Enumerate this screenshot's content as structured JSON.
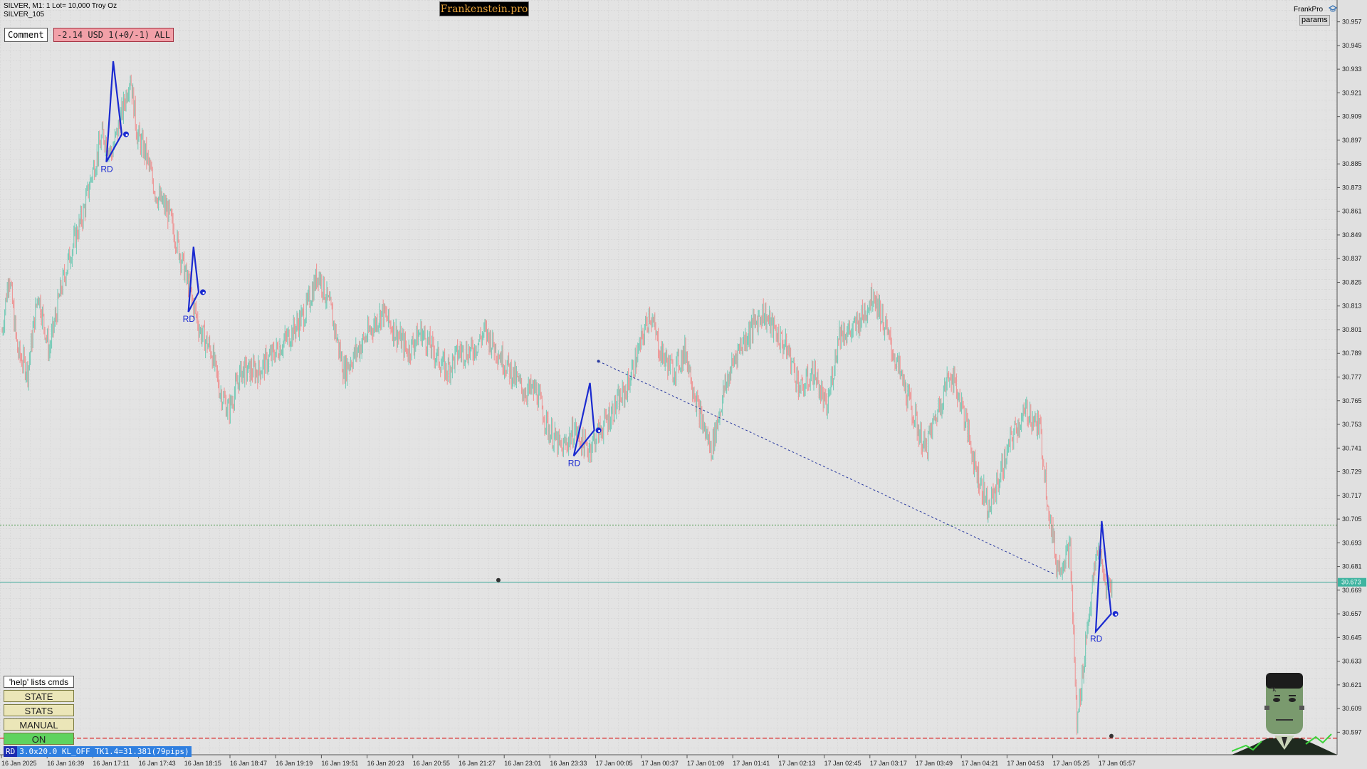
{
  "header": {
    "symbol_line": "SILVER, M1:  1 Lot= 10,000 Troy Oz",
    "indicator_line": "SILVER_105",
    "brand": "Frankenstein.pro",
    "comment_label": "Comment",
    "pnl_text": "-2.14 USD 1(+0/-1) ALL",
    "account_name": "FrankPro",
    "params_label": "params"
  },
  "left_panel": {
    "help_text": "'help' lists cmds",
    "buttons": [
      {
        "label": "STATE",
        "color": "#ebe6b8"
      },
      {
        "label": "STATS",
        "color": "#ebe6b8"
      },
      {
        "label": "MANUAL",
        "color": "#ebe6b8"
      },
      {
        "label": "ON",
        "color": "#5fd35f"
      }
    ],
    "status_tag": "RD",
    "status_text": "3.0x20.0 KL_OFF TK1.4=31.381(79pips)"
  },
  "price_axis": {
    "ticks": [
      "30.957",
      "30.945",
      "30.933",
      "30.921",
      "30.909",
      "30.897",
      "30.885",
      "30.873",
      "30.861",
      "30.849",
      "30.837",
      "30.825",
      "30.813",
      "30.801",
      "30.789",
      "30.777",
      "30.765",
      "30.753",
      "30.741",
      "30.729",
      "30.717",
      "30.705",
      "30.693",
      "30.681",
      "30.669",
      "30.657",
      "30.645",
      "30.633",
      "30.621",
      "30.609",
      "30.597"
    ],
    "current_price": "30.673"
  },
  "time_axis": {
    "ticks": [
      "16 Jan 2025",
      "16 Jan 16:39",
      "16 Jan 17:11",
      "16 Jan 17:43",
      "16 Jan 18:15",
      "16 Jan 18:47",
      "16 Jan 19:19",
      "16 Jan 19:51",
      "16 Jan 20:23",
      "16 Jan 20:55",
      "16 Jan 21:27",
      "16 Jan 23:01",
      "16 Jan 23:33",
      "17 Jan 00:05",
      "17 Jan 00:37",
      "17 Jan 01:09",
      "17 Jan 01:41",
      "17 Jan 02:13",
      "17 Jan 02:45",
      "17 Jan 03:17",
      "17 Jan 03:49",
      "17 Jan 04:21",
      "17 Jan 04:53",
      "17 Jan 05:25",
      "17 Jan 05:57"
    ]
  },
  "chart_data": {
    "type": "candlestick",
    "ylim": [
      30.591,
      30.963
    ],
    "bull_color": "#6ec9b4",
    "bear_color": "#ef8f8f",
    "close_anchors": [
      [
        0,
        30.8
      ],
      [
        8,
        30.83
      ],
      [
        18,
        30.79
      ],
      [
        30,
        30.78
      ],
      [
        42,
        30.82
      ],
      [
        55,
        30.79
      ],
      [
        68,
        30.82
      ],
      [
        80,
        30.84
      ],
      [
        95,
        30.86
      ],
      [
        105,
        30.88
      ],
      [
        118,
        30.9
      ],
      [
        128,
        30.89
      ],
      [
        140,
        30.91
      ],
      [
        150,
        30.93
      ],
      [
        158,
        30.9
      ],
      [
        168,
        30.89
      ],
      [
        180,
        30.87
      ],
      [
        195,
        30.86
      ],
      [
        208,
        30.84
      ],
      [
        220,
        30.82
      ],
      [
        232,
        30.8
      ],
      [
        245,
        30.79
      ],
      [
        255,
        30.77
      ],
      [
        265,
        30.76
      ],
      [
        280,
        30.78
      ],
      [
        300,
        30.78
      ],
      [
        320,
        30.79
      ],
      [
        340,
        30.8
      ],
      [
        355,
        30.81
      ],
      [
        370,
        30.83
      ],
      [
        385,
        30.81
      ],
      [
        400,
        30.78
      ],
      [
        415,
        30.79
      ],
      [
        430,
        30.8
      ],
      [
        445,
        30.81
      ],
      [
        460,
        30.8
      ],
      [
        475,
        30.79
      ],
      [
        490,
        30.8
      ],
      [
        505,
        30.79
      ],
      [
        520,
        30.78
      ],
      [
        535,
        30.79
      ],
      [
        550,
        30.79
      ],
      [
        565,
        30.8
      ],
      [
        580,
        30.79
      ],
      [
        595,
        30.78
      ],
      [
        610,
        30.77
      ],
      [
        625,
        30.77
      ],
      [
        640,
        30.75
      ],
      [
        655,
        30.74
      ],
      [
        670,
        30.75
      ],
      [
        685,
        30.74
      ],
      [
        700,
        30.75
      ],
      [
        715,
        30.76
      ],
      [
        730,
        30.77
      ],
      [
        745,
        30.79
      ],
      [
        758,
        30.81
      ],
      [
        770,
        30.79
      ],
      [
        785,
        30.78
      ],
      [
        800,
        30.79
      ],
      [
        815,
        30.76
      ],
      [
        830,
        30.74
      ],
      [
        845,
        30.77
      ],
      [
        860,
        30.79
      ],
      [
        875,
        30.8
      ],
      [
        890,
        30.81
      ],
      [
        905,
        30.8
      ],
      [
        920,
        30.79
      ],
      [
        935,
        30.77
      ],
      [
        950,
        30.78
      ],
      [
        965,
        30.76
      ],
      [
        980,
        30.8
      ],
      [
        995,
        30.8
      ],
      [
        1010,
        30.81
      ],
      [
        1020,
        30.82
      ],
      [
        1035,
        30.8
      ],
      [
        1050,
        30.78
      ],
      [
        1065,
        30.76
      ],
      [
        1080,
        30.74
      ],
      [
        1095,
        30.76
      ],
      [
        1110,
        30.78
      ],
      [
        1125,
        30.76
      ],
      [
        1140,
        30.73
      ],
      [
        1155,
        30.71
      ],
      [
        1170,
        30.73
      ],
      [
        1185,
        30.75
      ],
      [
        1200,
        30.76
      ],
      [
        1215,
        30.75
      ],
      [
        1225,
        30.71
      ],
      [
        1235,
        30.68
      ],
      [
        1250,
        30.69
      ],
      [
        1258,
        30.6
      ],
      [
        1270,
        30.65
      ],
      [
        1282,
        30.69
      ],
      [
        1292,
        30.67
      ],
      [
        1300,
        30.673
      ]
    ],
    "patterns": [
      {
        "label": "RD",
        "points": [
          [
            122,
            30.886
          ],
          [
            130,
            30.937
          ],
          [
            140,
            30.9
          ]
        ]
      },
      {
        "label": "RD",
        "points": [
          [
            218,
            30.81
          ],
          [
            224,
            30.843
          ],
          [
            230,
            30.82
          ]
        ]
      },
      {
        "label": "RD",
        "points": [
          [
            669,
            30.737
          ],
          [
            688,
            30.774
          ],
          [
            693,
            30.75
          ]
        ]
      },
      {
        "label": "RD",
        "points": [
          [
            1280,
            30.648
          ],
          [
            1287,
            30.704
          ],
          [
            1298,
            30.657
          ]
        ]
      }
    ],
    "levels": [
      {
        "price": 30.702,
        "style": "green-dotted"
      },
      {
        "price": 30.673,
        "style": "teal-solid"
      },
      {
        "price": 30.594,
        "style": "red-dashed"
      }
    ],
    "trend_line": {
      "from": [
        698,
        30.785
      ],
      "to": [
        1232,
        30.677
      ]
    }
  }
}
